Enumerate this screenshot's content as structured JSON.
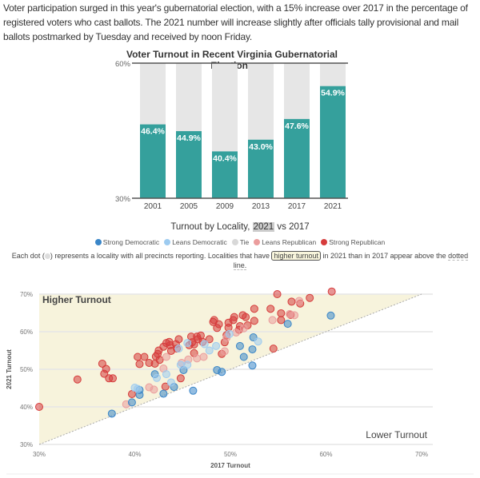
{
  "intro": "Voter participation surged in this year's gubernatorial election, with a 15% increase over 2017 in the percentage of registered voters who cast ballots. The 2021 number will increase slightly after officials tally provisional and mail ballots postmarked by Tuesday and received by noon Friday.",
  "chart_data": [
    {
      "type": "bar",
      "title": "Voter Turnout in Recent Virginia Gubernatorial Elections",
      "categories": [
        "2001",
        "2005",
        "2009",
        "2013",
        "2017",
        "2021"
      ],
      "values": [
        46.4,
        44.9,
        40.4,
        43.0,
        47.6,
        54.9
      ],
      "data_labels": [
        "46.4%",
        "44.9%",
        "40.4%",
        "43.0%",
        "47.6%",
        "54.9%"
      ],
      "ylim": [
        30,
        60
      ],
      "yticks": [
        "30%",
        "60%"
      ],
      "bar_color": "#35a09c",
      "background_bar_color": "#e6e6e6"
    },
    {
      "type": "scatter",
      "title_parts": {
        "before": "Turnout by Locality, ",
        "highlight": "2021",
        "after": " vs 2017"
      },
      "xlabel": "2017 Turnout",
      "ylabel": "2021 Turnout",
      "xlim": [
        30,
        70
      ],
      "ylim": [
        30,
        70
      ],
      "xticks": [
        "30%",
        "40%",
        "50%",
        "60%",
        "70%"
      ],
      "yticks": [
        "30%",
        "40%",
        "50%",
        "60%",
        "70%"
      ],
      "grid": true,
      "legend_position": "top",
      "region_labels": {
        "above": "Higher Turnout",
        "below": "Lower Turnout"
      },
      "region_color": "#f7f3dc",
      "legend": [
        {
          "name": "Strong Democratic",
          "color": "#3a86c8"
        },
        {
          "name": "Leans Democratic",
          "color": "#9dcbf0"
        },
        {
          "name": "Tie",
          "color": "#d8d8d8"
        },
        {
          "name": "Leans Republican",
          "color": "#eb9d9d"
        },
        {
          "name": "Strong Republican",
          "color": "#d63c3c"
        }
      ],
      "series": [
        {
          "name": "Strong Republican",
          "points": [
            [
              30,
              40.0
            ],
            [
              34.0,
              47.3
            ],
            [
              36.6,
              51.5
            ],
            [
              37.0,
              50.1
            ],
            [
              36.8,
              48.8
            ],
            [
              37.3,
              47.6
            ],
            [
              37.7,
              47.6
            ],
            [
              39.7,
              43.4
            ],
            [
              40.3,
              53.3
            ],
            [
              40.5,
              51.4
            ],
            [
              41.0,
              53.3
            ],
            [
              41.5,
              51.7
            ],
            [
              42.1,
              51.5
            ],
            [
              42.2,
              53.4
            ],
            [
              42.4,
              54.1
            ],
            [
              42.5,
              55.0
            ],
            [
              42.6,
              52.5
            ],
            [
              43.0,
              56.0
            ],
            [
              43.2,
              45.4
            ],
            [
              43.3,
              57.0
            ],
            [
              43.6,
              57.3
            ],
            [
              43.7,
              56.4
            ],
            [
              43.8,
              54.9
            ],
            [
              44.3,
              56.7
            ],
            [
              44.4,
              55.5
            ],
            [
              44.6,
              58.0
            ],
            [
              44.8,
              47.6
            ],
            [
              45.7,
              56.4
            ],
            [
              45.9,
              58.7
            ],
            [
              46.0,
              57.2
            ],
            [
              46.2,
              56.6
            ],
            [
              46.2,
              54.3
            ],
            [
              46.5,
              58.7
            ],
            [
              46.6,
              58.0
            ],
            [
              46.9,
              59.0
            ],
            [
              47.1,
              57.3
            ],
            [
              47.8,
              58.0
            ],
            [
              48.2,
              62.6
            ],
            [
              48.3,
              63.1
            ],
            [
              48.6,
              61.0
            ],
            [
              48.8,
              62.0
            ],
            [
              49.1,
              54.1
            ],
            [
              49.4,
              57.2
            ],
            [
              49.6,
              59.1
            ],
            [
              49.8,
              62.4
            ],
            [
              49.8,
              61.1
            ],
            [
              50.3,
              63.1
            ],
            [
              50.4,
              63.9
            ],
            [
              50.9,
              60.5
            ],
            [
              51.0,
              61.5
            ],
            [
              51.3,
              64.4
            ],
            [
              51.6,
              63.9
            ],
            [
              51.8,
              61.7
            ],
            [
              52.5,
              62.9
            ],
            [
              52.5,
              66.1
            ],
            [
              54.2,
              66.1
            ],
            [
              54.5,
              55.5
            ],
            [
              54.9,
              70.0
            ],
            [
              55.3,
              64.9
            ],
            [
              55.3,
              63.1
            ],
            [
              56.4,
              68.0
            ],
            [
              56.3,
              64.5
            ],
            [
              57.3,
              67.5
            ],
            [
              58.3,
              69.0
            ],
            [
              60.6,
              70.7
            ]
          ]
        },
        {
          "name": "Leans Republican",
          "points": [
            [
              39.1,
              40.7
            ],
            [
              41.5,
              45.2
            ],
            [
              42.0,
              44.6
            ],
            [
              43.0,
              50.2
            ],
            [
              43.3,
              53.3
            ],
            [
              44.9,
              51.7
            ],
            [
              45.6,
              52.6
            ],
            [
              46.5,
              52.9
            ],
            [
              47.2,
              53.3
            ],
            [
              49.4,
              54.8
            ],
            [
              49.6,
              58.4
            ],
            [
              50.6,
              59.8
            ],
            [
              51.4,
              60.9
            ],
            [
              54.4,
              63.1
            ],
            [
              56.2,
              64.7
            ],
            [
              56.7,
              64.4
            ],
            [
              57.2,
              68.2
            ]
          ]
        },
        {
          "name": "Strong Democratic",
          "points": [
            [
              37.6,
              38.2
            ],
            [
              39.7,
              41.2
            ],
            [
              40.5,
              44.5
            ],
            [
              40.5,
              43.2
            ],
            [
              42.1,
              48.7
            ],
            [
              43.0,
              43.5
            ],
            [
              44.1,
              45.3
            ],
            [
              45.1,
              49.8
            ],
            [
              46.1,
              44.3
            ],
            [
              48.6,
              49.8
            ],
            [
              49.1,
              49.3
            ],
            [
              51.0,
              56.2
            ],
            [
              51.4,
              53.3
            ],
            [
              52.3,
              55.3
            ],
            [
              52.4,
              58.5
            ],
            [
              52.3,
              51.0
            ],
            [
              56.0,
              62.1
            ],
            [
              60.5,
              64.3
            ]
          ]
        },
        {
          "name": "Leans Democratic",
          "points": [
            [
              40.0,
              45.1
            ],
            [
              40.3,
              44.8
            ],
            [
              42.3,
              47.7
            ],
            [
              43.3,
              48.7
            ],
            [
              43.8,
              46.5
            ],
            [
              44.6,
              55.5
            ],
            [
              44.8,
              51.2
            ],
            [
              45.5,
              51.2
            ],
            [
              45.5,
              57.0
            ],
            [
              47.3,
              56.7
            ],
            [
              47.8,
              55.0
            ],
            [
              48.5,
              56.2
            ],
            [
              49.9,
              59.4
            ],
            [
              52.9,
              57.4
            ]
          ]
        }
      ]
    }
  ],
  "note": {
    "before": "Each dot (",
    "after_dot": ") represents a locality with all precincts reporting. Localities that have ",
    "highlight": "higher turnout",
    "after": " in 2021 than in 2017 appear above the ",
    "dotted": "dotted line."
  }
}
